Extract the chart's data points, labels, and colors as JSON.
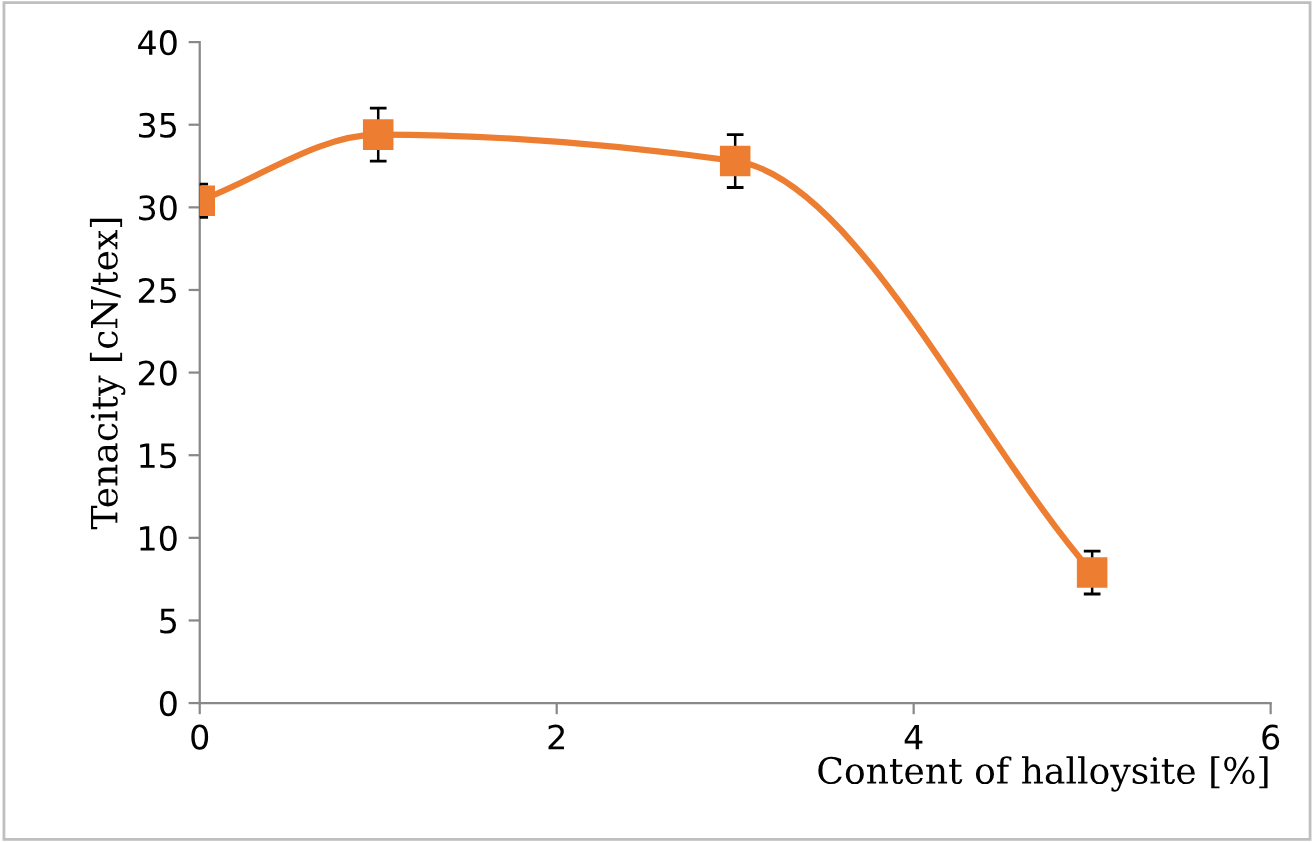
{
  "chart_data": {
    "type": "line",
    "xlabel": "Content of halloysite [%]",
    "ylabel": "Tenacity [cN/tex]",
    "x": [
      0,
      1,
      3,
      5
    ],
    "series": [
      {
        "color": "#ed7d31",
        "values": [
          30.4,
          34.4,
          32.8,
          7.9
        ],
        "errors": [
          1.0,
          1.6,
          1.6,
          1.3
        ]
      }
    ],
    "xlim": [
      0,
      6
    ],
    "xticks": [
      0,
      2,
      4,
      6
    ],
    "ylim": [
      0,
      40
    ],
    "yticks": [
      0,
      5,
      10,
      15,
      20,
      25,
      30,
      35,
      40
    ],
    "marker": "square",
    "line_style": "solid",
    "grid": false,
    "legend": false
  }
}
